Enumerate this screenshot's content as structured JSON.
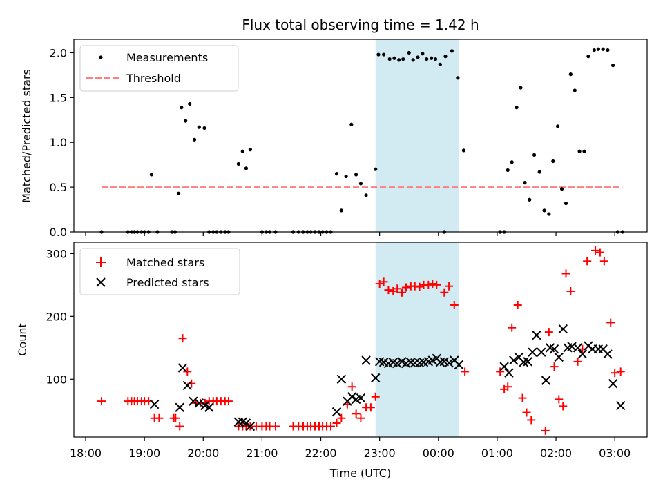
{
  "chart_data": [
    {
      "type": "scatter",
      "title": "Flux total observing time = 1.42 h",
      "xlabel": "",
      "ylabel": "Matched/Predicted stars",
      "ylim": [
        0,
        2.15
      ],
      "yticks": [
        0.0,
        0.5,
        1.0,
        1.5,
        2.0
      ],
      "ytick_labels": [
        "0.0",
        "0.5",
        "1.0",
        "1.5",
        "2.0"
      ],
      "legend": [
        "Measurements",
        "Threshold"
      ],
      "legend_position": "top-left",
      "threshold": {
        "value": 0.5,
        "x_start": 18.27,
        "x_end": 27.13,
        "color": "#ff7f7f"
      },
      "highlight": {
        "x_start": 22.93,
        "x_end": 24.35,
        "color": "#add8e6"
      },
      "series": [
        {
          "name": "Measurements",
          "color": "#000000",
          "x": [
            18.27,
            18.72,
            18.78,
            18.83,
            18.88,
            18.95,
            19.0,
            19.07,
            19.12,
            19.22,
            19.47,
            19.52,
            19.58,
            19.63,
            19.7,
            19.77,
            19.85,
            19.93,
            20.02,
            20.1,
            20.17,
            20.23,
            20.3,
            20.37,
            20.43,
            20.6,
            20.67,
            20.73,
            20.8,
            21.0,
            21.07,
            21.13,
            21.23,
            21.53,
            21.62,
            21.7,
            21.77,
            21.83,
            21.9,
            21.97,
            22.03,
            22.1,
            22.17,
            22.27,
            22.35,
            22.43,
            22.52,
            22.6,
            22.68,
            22.77,
            22.93,
            22.98,
            23.07,
            23.17,
            23.25,
            23.33,
            23.4,
            23.5,
            23.57,
            23.65,
            23.73,
            23.8,
            23.88,
            23.95,
            24.03,
            24.12,
            24.23,
            24.33,
            24.43,
            24.1,
            25.05,
            25.12,
            25.18,
            25.25,
            25.33,
            25.4,
            25.47,
            25.55,
            25.63,
            25.72,
            25.8,
            25.88,
            25.95,
            26.03,
            26.1,
            26.17,
            26.25,
            26.32,
            26.4,
            26.48,
            26.55,
            26.65,
            26.72,
            26.8,
            26.88,
            26.97,
            27.05,
            27.13
          ],
          "values": [
            0.0,
            0.0,
            0.0,
            0.0,
            0.0,
            0.0,
            0.0,
            0.0,
            0.64,
            0.0,
            0.0,
            0.0,
            0.43,
            1.39,
            1.24,
            1.43,
            1.03,
            1.17,
            1.16,
            0.0,
            0.0,
            0.0,
            0.0,
            0.0,
            0.0,
            0.76,
            0.9,
            0.71,
            0.92,
            0.0,
            0.0,
            0.0,
            0.0,
            0.0,
            0.0,
            0.0,
            0.0,
            0.0,
            0.0,
            0.0,
            0.0,
            0.0,
            0.0,
            0.65,
            0.24,
            0.62,
            1.2,
            0.64,
            0.54,
            0.41,
            0.7,
            1.98,
            1.98,
            1.93,
            1.94,
            1.92,
            1.93,
            2.0,
            1.92,
            1.95,
            1.99,
            1.93,
            1.94,
            1.93,
            1.87,
            1.96,
            2.02,
            1.72,
            0.91,
            0.0,
            0.0,
            0.0,
            0.69,
            0.78,
            1.39,
            1.61,
            0.55,
            0.36,
            0.86,
            0.67,
            0.24,
            0.2,
            0.79,
            1.18,
            0.48,
            0.32,
            1.76,
            1.58,
            0.9,
            0.9,
            1.96,
            2.03,
            2.04,
            2.04,
            2.03,
            1.86,
            0.0,
            0.0
          ]
        }
      ]
    },
    {
      "type": "scatter",
      "title": "",
      "xlabel": "Time (UTC)",
      "ylabel": "Count",
      "ylim": [
        8,
        318
      ],
      "yticks": [
        100,
        200,
        300
      ],
      "ytick_labels": [
        "100",
        "200",
        "300"
      ],
      "xlim": [
        17.8,
        27.55
      ],
      "xticks": [
        18,
        19,
        20,
        21,
        22,
        23,
        24,
        25,
        26,
        27
      ],
      "xtick_labels": [
        "18:00",
        "19:00",
        "20:00",
        "21:00",
        "22:00",
        "23:00",
        "00:00",
        "01:00",
        "02:00",
        "03:00"
      ],
      "legend": [
        "Matched stars",
        "Predicted stars"
      ],
      "legend_position": "top-left",
      "highlight": {
        "x_start": 22.93,
        "x_end": 24.35,
        "color": "#add8e6"
      },
      "series": [
        {
          "name": "Matched stars",
          "marker": "plus",
          "color": "#ff0000",
          "x": [
            18.27,
            18.72,
            18.78,
            18.83,
            18.88,
            18.95,
            19.0,
            19.07,
            19.17,
            19.25,
            19.5,
            19.53,
            19.6,
            19.65,
            19.73,
            19.8,
            19.87,
            19.95,
            20.03,
            20.1,
            20.17,
            20.23,
            20.3,
            20.37,
            20.43,
            20.6,
            20.67,
            20.73,
            20.8,
            20.9,
            21.0,
            21.07,
            21.13,
            21.23,
            21.53,
            21.62,
            21.7,
            21.77,
            21.83,
            21.9,
            21.97,
            22.03,
            22.1,
            22.17,
            22.27,
            22.35,
            22.45,
            22.53,
            22.6,
            22.68,
            22.77,
            22.85,
            22.93,
            23.0,
            23.07,
            23.15,
            23.23,
            23.3,
            23.38,
            23.45,
            23.53,
            23.6,
            23.68,
            23.75,
            23.83,
            23.9,
            23.97,
            24.1,
            24.18,
            24.27,
            24.45,
            25.05,
            25.12,
            25.18,
            25.25,
            25.35,
            25.43,
            25.5,
            25.58,
            25.82,
            25.88,
            25.97,
            26.05,
            26.12,
            26.17,
            26.25,
            26.37,
            26.45,
            26.53,
            26.67,
            26.75,
            26.82,
            26.93,
            27.0,
            27.1
          ],
          "values": [
            65,
            65,
            65,
            65,
            65,
            65,
            65,
            65,
            38,
            38,
            38,
            38,
            25,
            165,
            112,
            93,
            62,
            62,
            62,
            65,
            65,
            65,
            65,
            65,
            65,
            25,
            25,
            25,
            25,
            25,
            25,
            25,
            25,
            25,
            25,
            25,
            25,
            25,
            25,
            25,
            25,
            25,
            25,
            25,
            30,
            38,
            60,
            88,
            45,
            38,
            55,
            55,
            72,
            252,
            255,
            242,
            240,
            244,
            238,
            246,
            248,
            248,
            247,
            250,
            250,
            252,
            250,
            238,
            248,
            218,
            112,
            112,
            84,
            88,
            182,
            218,
            70,
            47,
            35,
            18,
            175,
            120,
            68,
            57,
            268,
            240,
            128,
            148,
            288,
            305,
            302,
            288,
            190,
            110,
            112
          ]
        },
        {
          "name": "Predicted stars",
          "marker": "x",
          "color": "#000000",
          "x": [
            19.17,
            19.6,
            19.65,
            19.73,
            19.83,
            19.93,
            20.03,
            20.1,
            20.6,
            20.67,
            20.73,
            20.8,
            22.27,
            22.35,
            22.45,
            22.53,
            22.6,
            22.68,
            22.77,
            22.93,
            23.0,
            23.07,
            23.15,
            23.23,
            23.3,
            23.38,
            23.45,
            23.53,
            23.6,
            23.68,
            23.75,
            23.83,
            23.9,
            23.97,
            24.03,
            24.1,
            24.18,
            24.27,
            24.35,
            25.12,
            25.2,
            25.28,
            25.37,
            25.45,
            25.52,
            25.6,
            25.67,
            25.75,
            25.83,
            25.9,
            25.97,
            26.05,
            26.12,
            26.2,
            26.27,
            26.37,
            26.45,
            26.55,
            26.62,
            26.72,
            26.8,
            26.88,
            26.97,
            27.1
          ],
          "values": [
            60,
            55,
            118,
            90,
            65,
            62,
            58,
            55,
            32,
            32,
            30,
            25,
            48,
            100,
            65,
            72,
            68,
            70,
            130,
            102,
            128,
            127,
            125,
            127,
            125,
            128,
            125,
            127,
            126,
            126,
            127,
            128,
            130,
            133,
            127,
            128,
            126,
            130,
            123,
            120,
            110,
            130,
            135,
            127,
            128,
            143,
            170,
            143,
            98,
            150,
            148,
            135,
            180,
            150,
            152,
            150,
            140,
            153,
            148,
            148,
            148,
            140,
            93,
            58
          ]
        }
      ]
    }
  ]
}
